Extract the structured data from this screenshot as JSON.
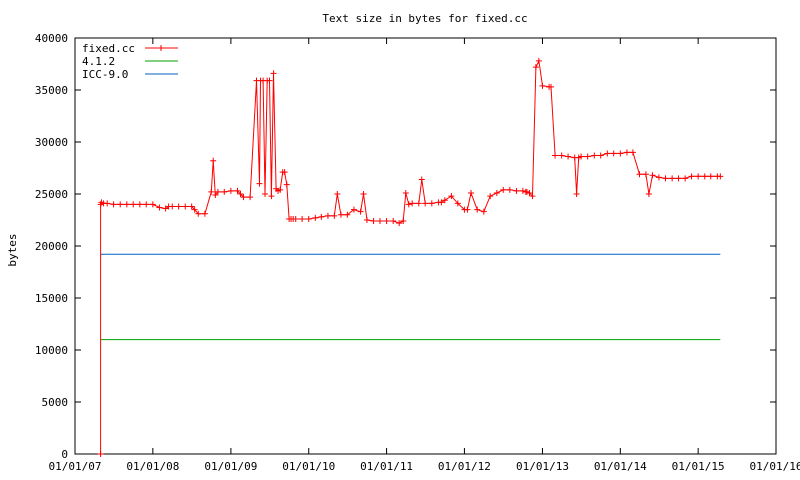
{
  "chart_data": {
    "type": "line",
    "title": "Text size in bytes for fixed.cc",
    "xlabel": "",
    "ylabel": "bytes",
    "ylim": [
      0,
      40000
    ],
    "yticks": [
      "0",
      "5000",
      "10000",
      "15000",
      "20000",
      "25000",
      "30000",
      "35000",
      "40000"
    ],
    "xlim": [
      "2007-01-01",
      "2016-01-01"
    ],
    "xticks": [
      "01/01/07",
      "01/01/08",
      "01/01/09",
      "01/01/10",
      "01/01/11",
      "01/01/12",
      "01/01/13",
      "01/01/14",
      "01/01/15",
      "01/01/16"
    ],
    "grid": false,
    "legend": "top-left",
    "series": [
      {
        "name": "fixed.cc",
        "color": "#ff0000",
        "marker": "plus",
        "x": [
          "2007-05-01",
          "2007-05-01",
          "2007-05-05",
          "2007-05-15",
          "2007-06-01",
          "2007-07-01",
          "2007-08-01",
          "2007-09-01",
          "2007-10-01",
          "2007-11-01",
          "2007-12-01",
          "2008-01-01",
          "2008-02-01",
          "2008-03-01",
          "2008-03-15",
          "2008-04-01",
          "2008-05-01",
          "2008-06-01",
          "2008-07-01",
          "2008-07-15",
          "2008-08-01",
          "2008-09-01",
          "2008-10-01",
          "2008-10-10",
          "2008-10-20",
          "2008-11-01",
          "2008-12-01",
          "2009-01-01",
          "2009-02-01",
          "2009-02-15",
          "2009-03-01",
          "2009-04-01",
          "2009-05-01",
          "2009-05-15",
          "2009-05-20",
          "2009-06-01",
          "2009-06-10",
          "2009-06-20",
          "2009-07-01",
          "2009-07-10",
          "2009-07-20",
          "2009-08-01",
          "2009-08-10",
          "2009-08-20",
          "2009-09-01",
          "2009-09-10",
          "2009-09-20",
          "2009-10-01",
          "2009-10-10",
          "2009-10-20",
          "2009-11-01",
          "2009-12-01",
          "2010-01-01",
          "2010-02-01",
          "2010-03-01",
          "2010-04-01",
          "2010-05-01",
          "2010-05-15",
          "2010-06-01",
          "2010-07-01",
          "2010-08-01",
          "2010-09-01",
          "2010-09-15",
          "2010-10-01",
          "2010-11-01",
          "2010-12-01",
          "2011-01-01",
          "2011-02-01",
          "2011-03-01",
          "2011-03-20",
          "2011-04-01",
          "2011-04-15",
          "2011-05-01",
          "2011-06-01",
          "2011-06-15",
          "2011-07-01",
          "2011-08-01",
          "2011-09-01",
          "2011-09-15",
          "2011-10-01",
          "2011-11-01",
          "2011-12-01",
          "2012-01-01",
          "2012-01-15",
          "2012-02-01",
          "2012-03-01",
          "2012-04-01",
          "2012-05-01",
          "2012-06-01",
          "2012-07-01",
          "2012-08-01",
          "2012-09-01",
          "2012-10-01",
          "2012-10-15",
          "2012-10-20",
          "2012-11-01",
          "2012-11-15",
          "2012-12-01",
          "2012-12-15",
          "2013-01-01",
          "2013-02-01",
          "2013-02-10",
          "2013-03-01",
          "2013-04-01",
          "2013-05-01",
          "2013-06-01",
          "2013-06-10",
          "2013-06-20",
          "2013-07-01",
          "2013-08-01",
          "2013-09-01",
          "2013-10-01",
          "2013-11-01",
          "2013-12-01",
          "2014-01-01",
          "2014-02-01",
          "2014-03-01",
          "2014-04-01",
          "2014-05-01",
          "2014-05-15",
          "2014-06-01",
          "2014-07-01",
          "2014-08-01",
          "2014-09-01",
          "2014-10-01",
          "2014-11-01",
          "2014-12-01",
          "2015-01-01",
          "2015-02-01",
          "2015-03-01",
          "2015-04-01",
          "2015-04-15"
        ],
        "y": [
          0,
          24000,
          24200,
          24100,
          24100,
          24000,
          24000,
          24000,
          24000,
          24000,
          24000,
          24000,
          23700,
          23600,
          23800,
          23800,
          23800,
          23800,
          23800,
          23500,
          23100,
          23100,
          25200,
          28200,
          24900,
          25200,
          25200,
          25300,
          25300,
          25000,
          24700,
          24700,
          35900,
          26000,
          35900,
          35900,
          25000,
          35900,
          35900,
          24800,
          36600,
          25500,
          25300,
          25400,
          27100,
          27100,
          25900,
          22600,
          22600,
          22600,
          22600,
          22600,
          22600,
          22700,
          22800,
          22900,
          22900,
          25000,
          23000,
          23000,
          23500,
          23300,
          25000,
          22500,
          22400,
          22400,
          22400,
          22400,
          22200,
          22400,
          25100,
          24000,
          24100,
          24100,
          26400,
          24100,
          24100,
          24200,
          24200,
          24400,
          24800,
          24100,
          23500,
          23500,
          25100,
          23500,
          23300,
          24800,
          25100,
          25400,
          25400,
          25300,
          25300,
          25200,
          25200,
          25100,
          24800,
          37200,
          37800,
          35400,
          35300,
          35300,
          28700,
          28700,
          28600,
          28500,
          25000,
          28500,
          28600,
          28600,
          28700,
          28700,
          28900,
          28900,
          28900,
          29000,
          29000,
          26900,
          26900,
          25000,
          26800,
          26600,
          26500,
          26500,
          26500,
          26500,
          26700,
          26700,
          26700,
          26700,
          26700,
          26700
        ]
      },
      {
        "name": "4.1.2",
        "color": "#00a000",
        "x": [
          "2007-05-01",
          "2015-04-15"
        ],
        "y": [
          11000,
          11000
        ]
      },
      {
        "name": "ICC-9.0",
        "color": "#0060c0",
        "x": [
          "2007-05-01",
          "2015-04-15"
        ],
        "y": [
          19200,
          19200
        ]
      }
    ]
  }
}
